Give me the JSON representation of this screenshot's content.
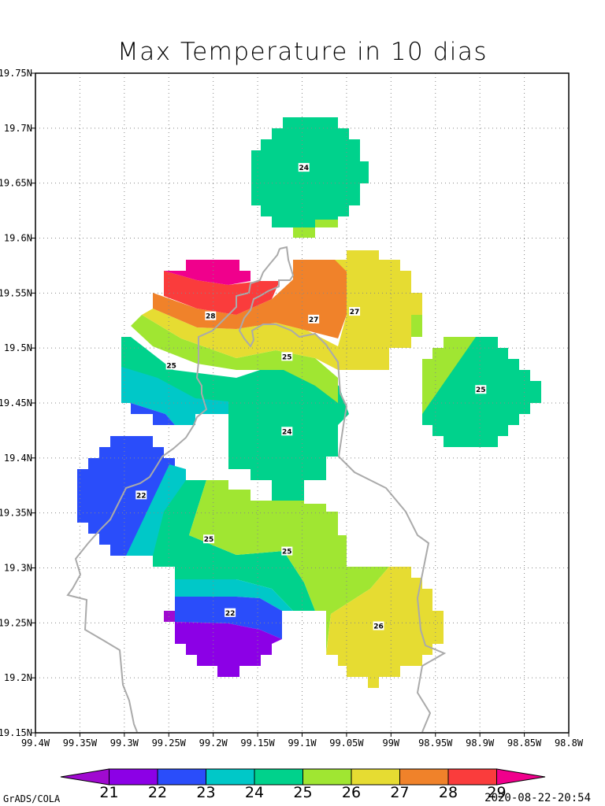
{
  "chart_data": {
    "type": "heatmap",
    "title": "Max Temperature in 10 dias",
    "xlim": [
      -99.4,
      -98.8
    ],
    "ylim": [
      19.15,
      19.75
    ],
    "x_ticks": [
      "99.4W",
      "99.35W",
      "99.3W",
      "99.25W",
      "99.2W",
      "99.15W",
      "99.1W",
      "99.05W",
      "99W",
      "98.95W",
      "98.9W",
      "98.85W",
      "98.8W"
    ],
    "y_ticks": [
      "19.15N",
      "19.2N",
      "19.25N",
      "19.3N",
      "19.35N",
      "19.4N",
      "19.45N",
      "19.5N",
      "19.55N",
      "19.6N",
      "19.65N",
      "19.7N",
      "19.75N"
    ],
    "grid": true,
    "colorbar": {
      "levels": [
        "21",
        "22",
        "23",
        "24",
        "25",
        "26",
        "27",
        "28",
        "29"
      ],
      "colors": [
        "#a00ad0",
        "#8c00e6",
        "#2a4dfa",
        "#00c8c8",
        "#00d28c",
        "#a0e632",
        "#e6dc32",
        "#f0822a",
        "#fa3c3c",
        "#f0008c"
      ]
    },
    "contour_labels": [
      {
        "lon": -99.098,
        "lat": 19.664,
        "text": "24"
      },
      {
        "lon": -99.203,
        "lat": 19.529,
        "text": "28"
      },
      {
        "lon": -99.087,
        "lat": 19.526,
        "text": "27"
      },
      {
        "lon": -99.041,
        "lat": 19.533,
        "text": "27"
      },
      {
        "lon": -99.247,
        "lat": 19.484,
        "text": "25"
      },
      {
        "lon": -99.117,
        "lat": 19.492,
        "text": "25"
      },
      {
        "lon": -98.899,
        "lat": 19.462,
        "text": "25"
      },
      {
        "lon": -99.117,
        "lat": 19.424,
        "text": "24"
      },
      {
        "lon": -99.281,
        "lat": 19.366,
        "text": "22"
      },
      {
        "lon": -99.205,
        "lat": 19.326,
        "text": "25"
      },
      {
        "lon": -99.117,
        "lat": 19.315,
        "text": "25"
      },
      {
        "lon": -99.181,
        "lat": 19.259,
        "text": "22"
      },
      {
        "lon": -99.014,
        "lat": 19.247,
        "text": "26"
      }
    ]
  },
  "footer": {
    "left": "GrADS/COLA",
    "right": "2020-08-22-20:54"
  }
}
